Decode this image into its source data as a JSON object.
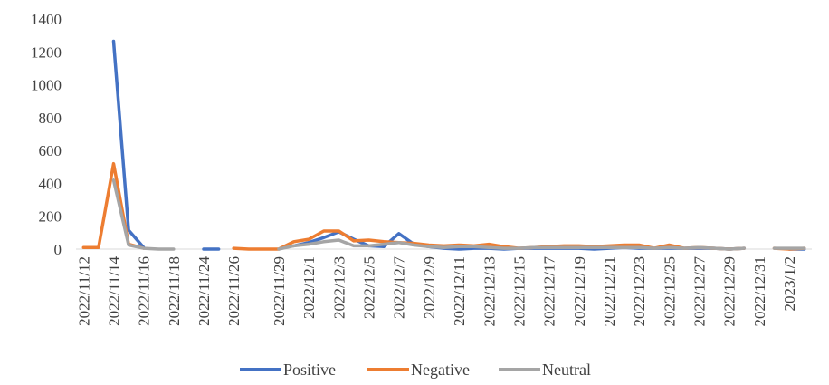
{
  "chart_data": {
    "type": "line",
    "title": "",
    "xlabel": "",
    "ylabel": "",
    "ylim": [
      0,
      1400
    ],
    "yticks": [
      0,
      200,
      400,
      600,
      800,
      1000,
      1200,
      1400
    ],
    "grid": false,
    "legend_position": "bottom",
    "x": [
      "2022/11/12",
      "2022/11/13",
      "2022/11/14",
      "2022/11/15",
      "2022/11/16",
      "2022/11/17",
      "2022/11/18",
      "2022/11/19",
      "2022/11/24",
      "2022/11/25",
      "2022/11/26",
      "2022/11/27",
      "2022/11/28",
      "2022/11/29",
      "2022/11/30",
      "2022/12/1",
      "2022/12/2",
      "2022/12/3",
      "2022/12/4",
      "2022/12/5",
      "2022/12/6",
      "2022/12/7",
      "2022/12/8",
      "2022/12/9",
      "2022/12/10",
      "2022/12/11",
      "2022/12/12",
      "2022/12/13",
      "2022/12/14",
      "2022/12/15",
      "2022/12/16",
      "2022/12/17",
      "2022/12/18",
      "2022/12/19",
      "2022/12/20",
      "2022/12/21",
      "2022/12/22",
      "2022/12/23",
      "2022/12/24",
      "2022/12/25",
      "2022/12/26",
      "2022/12/27",
      "2022/12/28",
      "2022/12/29",
      "2022/12/30",
      "2022/12/31",
      "2023/1/1",
      "2023/1/2",
      "2023/1/3"
    ],
    "x_tick_labels": [
      "2022/11/12",
      "2022/11/14",
      "2022/11/16",
      "2022/11/18",
      "2022/11/24",
      "2022/11/26",
      "2022/11/29",
      "2022/12/1",
      "2022/12/3",
      "2022/12/5",
      "2022/12/7",
      "2022/12/9",
      "2022/12/11",
      "2022/12/13",
      "2022/12/15",
      "2022/12/17",
      "2022/12/19",
      "2022/12/21",
      "2022/12/23",
      "2022/12/25",
      "2022/12/27",
      "2022/12/29",
      "2022/12/31",
      "2023/1/2"
    ],
    "series": [
      {
        "name": "Positive",
        "color": "#4472C4",
        "values": [
          null,
          null,
          1265,
          115,
          10,
          null,
          null,
          null,
          0,
          0,
          null,
          null,
          null,
          null,
          20,
          40,
          70,
          105,
          60,
          20,
          15,
          95,
          30,
          15,
          5,
          0,
          5,
          5,
          0,
          5,
          5,
          5,
          5,
          5,
          0,
          5,
          10,
          5,
          5,
          5,
          5,
          5,
          5,
          0,
          5,
          null,
          null,
          0,
          0
        ]
      },
      {
        "name": "Negative",
        "color": "#ED7D31",
        "values": [
          10,
          10,
          520,
          30,
          5,
          null,
          null,
          null,
          null,
          null,
          5,
          0,
          0,
          0,
          45,
          60,
          110,
          110,
          50,
          55,
          45,
          40,
          35,
          25,
          20,
          25,
          20,
          30,
          15,
          5,
          10,
          15,
          20,
          20,
          15,
          20,
          25,
          25,
          5,
          25,
          5,
          10,
          5,
          0,
          5,
          null,
          5,
          0,
          5
        ]
      },
      {
        "name": "Neutral",
        "color": "#A5A5A5",
        "values": [
          null,
          null,
          420,
          25,
          5,
          0,
          0,
          null,
          null,
          null,
          null,
          null,
          null,
          0,
          20,
          30,
          45,
          55,
          20,
          20,
          30,
          40,
          25,
          15,
          10,
          15,
          15,
          10,
          5,
          5,
          10,
          10,
          10,
          10,
          10,
          10,
          10,
          10,
          5,
          10,
          5,
          10,
          5,
          0,
          5,
          null,
          5,
          5,
          5
        ]
      }
    ]
  }
}
